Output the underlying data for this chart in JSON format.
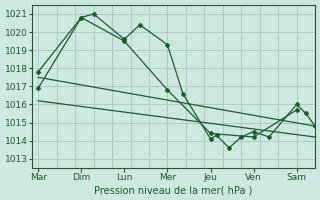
{
  "xlabel": "Pression niveau de la mer( hPa )",
  "bg_color": "#cce8e0",
  "grid_color": "#aaccc4",
  "line_color": "#1a5c2a",
  "ylim": [
    1012.5,
    1021.5
  ],
  "yticks": [
    1013,
    1014,
    1015,
    1016,
    1017,
    1018,
    1019,
    1020,
    1021
  ],
  "x_labels": [
    "Mar",
    "Dim",
    "Lun",
    "Mer",
    "Jeu",
    "Ven",
    "Sam"
  ],
  "x_tick_pos": [
    0,
    14,
    28,
    42,
    56,
    70,
    84
  ],
  "xlim": [
    -2,
    90
  ],
  "series1_x": [
    0,
    14,
    18,
    28,
    33,
    42,
    47,
    56,
    58,
    62,
    66,
    70,
    75,
    84,
    87,
    90
  ],
  "series1_y": [
    1016.9,
    1020.8,
    1021.0,
    1019.6,
    1020.4,
    1019.3,
    1016.6,
    1014.1,
    1014.3,
    1013.6,
    1014.2,
    1014.5,
    1014.2,
    1016.0,
    1015.5,
    1014.8
  ],
  "series2_x": [
    0,
    14,
    28,
    42,
    56,
    70,
    84
  ],
  "series2_y": [
    1017.8,
    1020.8,
    1019.5,
    1016.8,
    1014.4,
    1014.2,
    1015.7
  ],
  "trend1_x": [
    0,
    90
  ],
  "trend1_y": [
    1017.5,
    1014.8
  ],
  "trend2_x": [
    0,
    90
  ],
  "trend2_y": [
    1016.2,
    1014.2
  ]
}
